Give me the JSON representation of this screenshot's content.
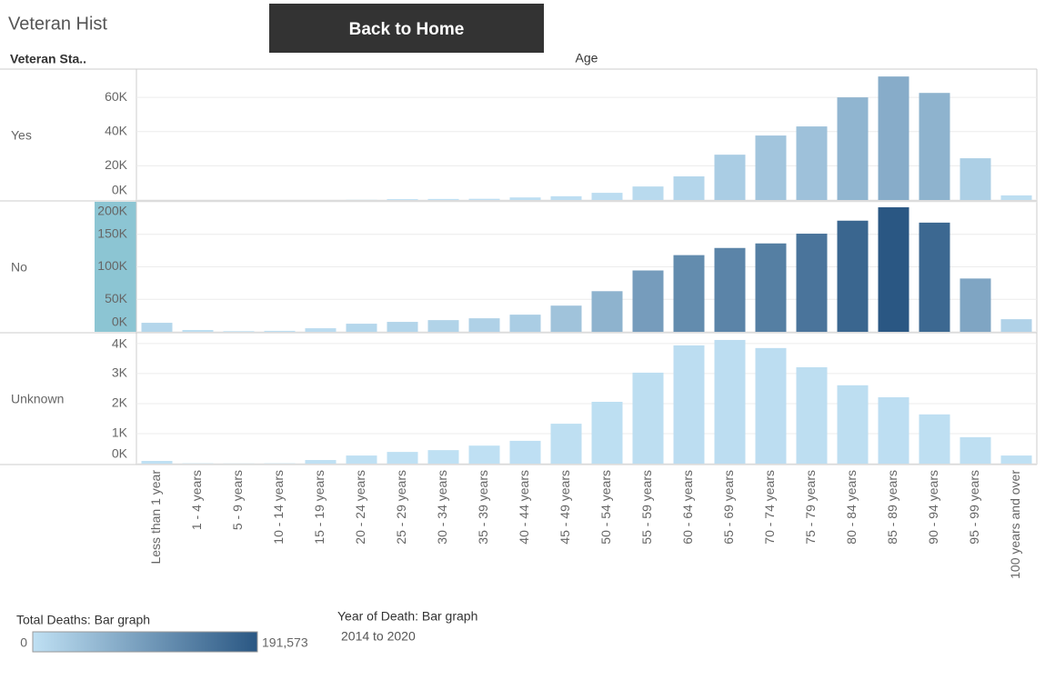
{
  "title": "Veteran Hist",
  "button": "Back to Home",
  "row_header": "Veteran Sta..",
  "column_header": "Age",
  "chart_data": {
    "type": "bar",
    "categories": [
      "Less than 1 year",
      "1 - 4 years",
      "5 - 9 years",
      "10 - 14 years",
      "15 - 19 years",
      "20 - 24 years",
      "25 - 29 years",
      "30 - 34 years",
      "35 - 39 years",
      "40 - 44 years",
      "45 - 49 years",
      "50 - 54 years",
      "55 - 59 years",
      "60 - 64 years",
      "65 - 69 years",
      "70 - 74 years",
      "75 - 79 years",
      "80 - 84 years",
      "85 - 89 years",
      "90 - 94 years",
      "95 - 99 years",
      "100 years and over"
    ],
    "panels": [
      {
        "label": "Yes",
        "values": [
          0,
          0,
          0,
          0,
          0,
          100,
          500,
          600,
          700,
          1500,
          2200,
          4200,
          7900,
          13800,
          26500,
          37700,
          43000,
          60000,
          72200,
          62600,
          24400,
          2700
        ],
        "ylim": [
          0,
          76000
        ],
        "yticks": [
          {
            "value": 0,
            "label": "0K"
          },
          {
            "value": 20000,
            "label": "20K"
          },
          {
            "value": 40000,
            "label": "40K"
          },
          {
            "value": 60000,
            "label": "60K"
          }
        ]
      },
      {
        "label": "No",
        "values": [
          13900,
          2800,
          1000,
          1500,
          5500,
          12500,
          15300,
          18000,
          20800,
          26400,
          40300,
          62500,
          94400,
          118000,
          129000,
          136000,
          151000,
          171000,
          191573,
          168000,
          82000,
          19400
        ],
        "ylim": [
          0,
          200000
        ],
        "yticks": [
          {
            "value": 0,
            "label": "0K"
          },
          {
            "value": 50000,
            "label": "50K"
          },
          {
            "value": 100000,
            "label": "100K"
          },
          {
            "value": 150000,
            "label": "150K"
          },
          {
            "value": 200000,
            "label": "200K"
          }
        ]
      },
      {
        "label": "Unknown",
        "values": [
          90,
          10,
          5,
          10,
          120,
          270,
          390,
          450,
          600,
          760,
          1330,
          2060,
          3030,
          3940,
          4120,
          3850,
          3210,
          2610,
          2210,
          1640,
          880,
          270
        ],
        "ylim": [
          0,
          4300
        ],
        "yticks": [
          {
            "value": 0,
            "label": "0K"
          },
          {
            "value": 1000,
            "label": "1K"
          },
          {
            "value": 2000,
            "label": "2K"
          },
          {
            "value": 3000,
            "label": "3K"
          },
          {
            "value": 4000,
            "label": "4K"
          }
        ]
      }
    ],
    "color_legend": {
      "title": "Total Deaths: Bar graph",
      "min": 0,
      "max": {
        "value": 191573,
        "label": "191,573"
      },
      "colors": [
        "#bfe0f3",
        "#2a5783"
      ]
    },
    "filter": {
      "title": "Year of Death: Bar graph",
      "value": "2014 to 2020"
    }
  }
}
